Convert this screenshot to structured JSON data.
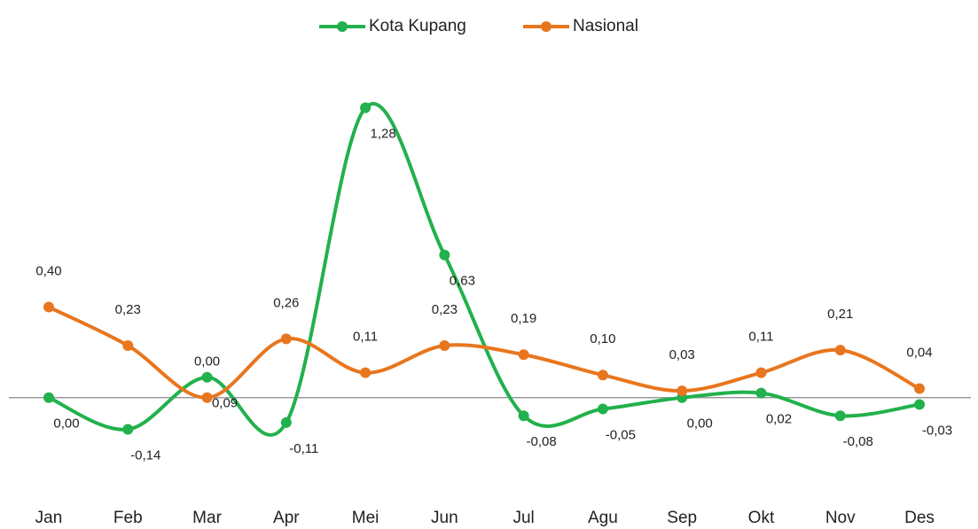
{
  "chart_data": {
    "type": "line",
    "categories": [
      "Jan",
      "Feb",
      "Mar",
      "Apr",
      "Mei",
      "Jun",
      "Jul",
      "Agu",
      "Sep",
      "Okt",
      "Nov",
      "Des"
    ],
    "series": [
      {
        "name": "Kota Kupang",
        "color": "#22b14c",
        "values": [
          0.0,
          -0.14,
          0.09,
          -0.11,
          1.28,
          0.63,
          -0.08,
          -0.05,
          0.0,
          0.02,
          -0.08,
          -0.03
        ],
        "value_labels": [
          "0,00",
          "-0,14",
          "0,09",
          "-0,11",
          "1,28",
          "0,63",
          "-0,08",
          "-0,05",
          "0,00",
          "0,02",
          "-0,08",
          "-0,03"
        ]
      },
      {
        "name": "Nasional",
        "color": "#e8761e",
        "values": [
          0.4,
          0.23,
          0.0,
          0.26,
          0.11,
          0.23,
          0.19,
          0.1,
          0.03,
          0.11,
          0.21,
          0.04
        ],
        "value_labels": [
          "0,40",
          "0,23",
          "0,00",
          "0,26",
          "0,11",
          "0,23",
          "0,19",
          "0,10",
          "0,03",
          "0,11",
          "0,21",
          "0,04"
        ]
      }
    ],
    "ylim": [
      -0.4,
      1.4
    ],
    "legend": "top"
  }
}
